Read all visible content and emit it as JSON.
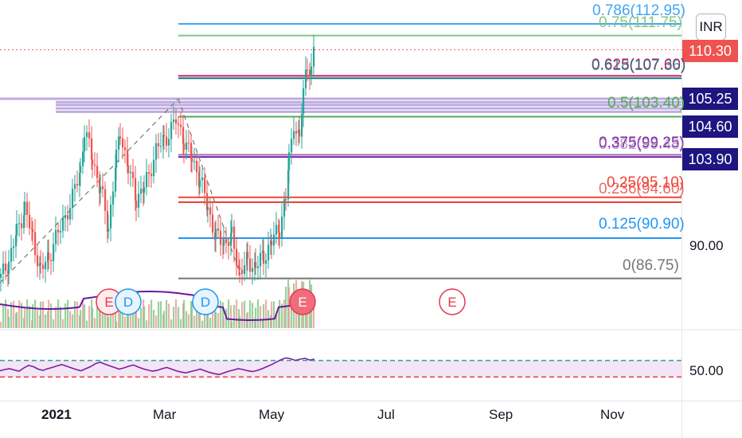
{
  "chart_data": {
    "type": "candlestick",
    "currency": "INR",
    "x_tick_labels": [
      "2021",
      "Mar",
      "May",
      "Jul",
      "Sep",
      "Nov"
    ],
    "price_axis_labels": [
      "90.00"
    ],
    "rsi_axis_labels": [
      "50.00"
    ],
    "last_price": {
      "value": 110.3,
      "label": "110.30",
      "color": "#ef5350"
    },
    "price_tags": [
      {
        "label": "105.25",
        "value": 105.25,
        "color": "#1e1580"
      },
      {
        "label": "104.60",
        "value": 104.6,
        "color": "#1e1580"
      },
      {
        "label": "103.90",
        "value": 103.9,
        "color": "#1e1580"
      }
    ],
    "fib_levels": [
      {
        "ratio": "0.786",
        "label": "0.786(112.95)",
        "value": 112.95,
        "color": "#42a5f5"
      },
      {
        "ratio": "0.75",
        "label": "0.75(111.75)",
        "value": 111.75,
        "color": "#81c784"
      },
      {
        "ratio": "0.625",
        "label": "0.625(107.60)",
        "value": 107.6,
        "color": "#d81b60"
      },
      {
        "ratio": "0.618",
        "label": "0.618(107.36)",
        "value": 107.36,
        "color": "#0b7a82"
      },
      {
        "ratio": "0.5",
        "label": "0.5(103.40)",
        "value": 103.4,
        "color": "#4caf50"
      },
      {
        "ratio": "0.375",
        "label": "0.375(99.25)",
        "value": 99.25,
        "color": "#7b1fa2"
      },
      {
        "ratio": "0.382",
        "label": "0.382(99.48)",
        "value": 99.48,
        "color": "#9c6fb0"
      },
      {
        "ratio": "0.25",
        "label": "0.25(95.10)",
        "value": 95.1,
        "color": "#f44336"
      },
      {
        "ratio": "0.236",
        "label": "0.236(94.60)",
        "value": 94.6,
        "color": "#e53935"
      },
      {
        "ratio": "0.125",
        "label": "0.125(90.90)",
        "value": 90.9,
        "color": "#2196f3"
      },
      {
        "ratio": "0",
        "label": "0(86.75)",
        "value": 86.75,
        "color": "#757575"
      }
    ],
    "resistance_lines": [
      105.25,
      104.9,
      104.6,
      104.25,
      103.9
    ],
    "events": [
      {
        "letter": "E",
        "kind": "earnings"
      },
      {
        "letter": "D",
        "kind": "dividend"
      },
      {
        "letter": "D",
        "kind": "dividend"
      },
      {
        "letter": "E",
        "kind": "earnings"
      },
      {
        "letter": "E",
        "kind": "earnings-upcoming"
      }
    ],
    "rsi": {
      "upper_band": 70,
      "lower_band": 30,
      "mid": 50,
      "values": [
        45,
        48,
        50,
        47,
        44,
        52,
        58,
        55,
        49,
        46,
        50,
        53,
        57,
        60,
        56,
        52,
        48,
        45,
        50,
        55,
        62,
        66,
        61,
        57,
        53,
        49,
        52,
        56,
        59,
        54,
        50,
        47,
        44,
        46,
        50,
        53,
        49,
        45,
        42,
        40,
        43,
        46,
        49,
        45,
        41,
        38,
        36,
        40,
        44,
        47,
        50,
        48,
        45,
        43,
        46,
        50,
        55,
        60,
        66,
        72,
        76,
        74,
        70,
        73,
        75,
        71,
        73
      ]
    },
    "colors": {
      "up": "#26a69a",
      "down": "#ef5350",
      "ma": "#6a1b9a",
      "rsi": "#7b1fa2",
      "rsi_band_fill": "#f3e5f5"
    }
  }
}
